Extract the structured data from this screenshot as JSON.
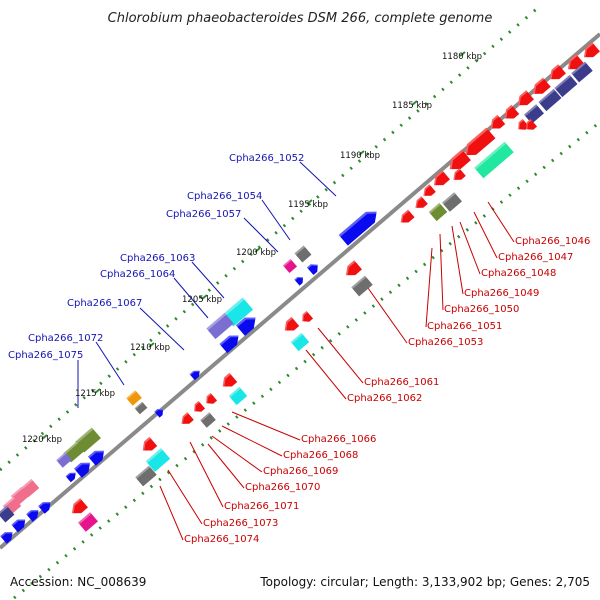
{
  "title": "Chlorobium phaeobacteroides DSM 266, complete genome",
  "footer": {
    "accession": "Accession: NC_008639",
    "summary": "Topology: circular; Length: 3,133,902 bp; Genes: 2,705"
  },
  "scale_labels": [
    "1180 kbp",
    "1185 kbp",
    "1190 kbp",
    "1195 kbp",
    "1200 kbp",
    "1205 kbp",
    "1210 kbp",
    "1215 kbp",
    "1220 kbp"
  ],
  "gene_labels_top": [
    "Cpha266_1052",
    "Cpha266_1054",
    "Cpha266_1057",
    "Cpha266_1063",
    "Cpha266_1064",
    "Cpha266_1067",
    "Cpha266_1072",
    "Cpha266_1075"
  ],
  "gene_labels_bottom": [
    "Cpha266_1046",
    "Cpha266_1047",
    "Cpha266_1048",
    "Cpha266_1049",
    "Cpha266_1050",
    "Cpha266_1051",
    "Cpha266_1053",
    "Cpha266_1061",
    "Cpha266_1062",
    "Cpha266_1066",
    "Cpha266_1068",
    "Cpha266_1069",
    "Cpha266_1070",
    "Cpha266_1071",
    "Cpha266_1073",
    "Cpha266_1074"
  ],
  "colors": {
    "backbone": "#8a8a8a",
    "scale_dots": "#2e8b2e",
    "top_label": "#1414b4",
    "bottom_label": "#c80000",
    "blue_gene": "#0a0af0",
    "red_gene": "#f01010",
    "navy_gene": "#3c3c8c",
    "cyan_gene": "#19e6e6",
    "teal_gene": "#20e8a0",
    "grey_gene": "#6e6e6e",
    "olive_gene": "#6e8c32",
    "magenta_gene": "#e6148c",
    "pink_gene": "#f06e8c",
    "orange_gene": "#f0960a",
    "purple_gene": "#7a6ed2"
  }
}
